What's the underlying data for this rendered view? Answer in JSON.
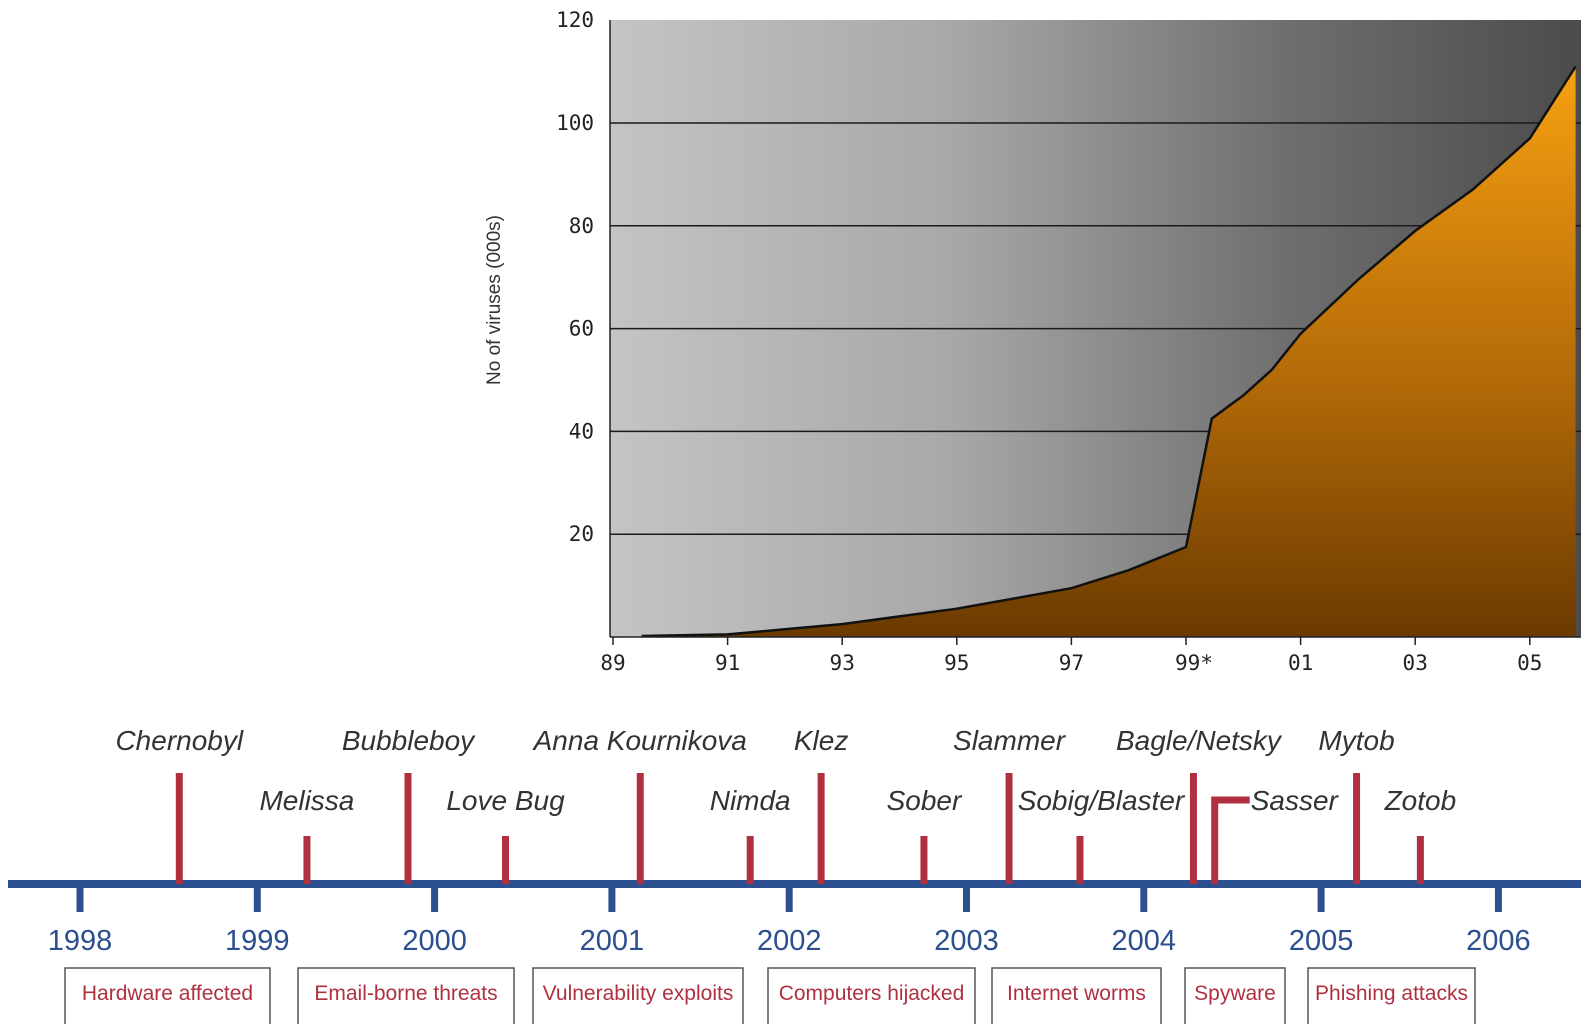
{
  "chart_data": {
    "type": "area",
    "title": "",
    "xlabel": "",
    "ylabel": "No of viruses (000s)",
    "y_ticks": [
      20,
      40,
      60,
      80,
      100,
      120
    ],
    "ylim": [
      0,
      120
    ],
    "x_ticks": [
      "89",
      "91",
      "93",
      "95",
      "97",
      "99*",
      "01",
      "03",
      "05"
    ],
    "grid": true,
    "series": [
      {
        "x": [
          1989.5,
          1991,
          1992,
          1993,
          1994,
          1995,
          1996,
          1997,
          1998,
          1999,
          1999.45,
          2000,
          2000.5,
          2001,
          2002,
          2003,
          2004,
          2005,
          2005.8
        ],
        "values": [
          0.2,
          0.5,
          1.5,
          2.5,
          4,
          5.5,
          7.5,
          9.5,
          13,
          17.5,
          42.5,
          47,
          52,
          59,
          69.5,
          79,
          87,
          97,
          111
        ]
      }
    ],
    "colors": {
      "fill_top": "#f39a10",
      "fill_bottom": "#6b3a00",
      "bg_light": "#c3c3c3",
      "bg_dark": "#4e4e4e"
    }
  },
  "timeline": {
    "years": [
      "1998",
      "1999",
      "2000",
      "2001",
      "2002",
      "2003",
      "2004",
      "2005",
      "2006"
    ],
    "events": [
      {
        "name": "Chernobyl",
        "date": 1998.56,
        "row": "top"
      },
      {
        "name": "Melissa",
        "date": 1999.28,
        "row": "bottom"
      },
      {
        "name": "Bubbleboy",
        "date": 1999.85,
        "row": "top"
      },
      {
        "name": "Love Bug",
        "date": 2000.4,
        "row": "bottom"
      },
      {
        "name": "Anna Kournikova",
        "date": 2001.16,
        "row": "top"
      },
      {
        "name": "Nimda",
        "date": 2001.78,
        "row": "bottom"
      },
      {
        "name": "Klez",
        "date": 2002.18,
        "row": "top"
      },
      {
        "name": "Sober",
        "date": 2002.76,
        "row": "bottom"
      },
      {
        "name": "Slammer",
        "date": 2003.24,
        "row": "top"
      },
      {
        "name": "Sobig/Blaster",
        "date": 2003.64,
        "row": "bottom"
      },
      {
        "name": "Bagle/Netsky",
        "date": 2004.28,
        "row": "top"
      },
      {
        "name": "Sasser",
        "date": 2004.4,
        "row": "bottom"
      },
      {
        "name": "Mytob",
        "date": 2005.2,
        "row": "top"
      },
      {
        "name": "Zotob",
        "date": 2005.56,
        "row": "bottom"
      }
    ],
    "eras": [
      "Hardware affected",
      "Email-borne threats",
      "Vulnerability exploits",
      "Computers hijacked",
      "Internet worms",
      "Spyware",
      "Phishing attacks"
    ],
    "colors": {
      "axis": "#2c4f8f",
      "marker": "#b03040",
      "era_text": "#b03040",
      "box_border": "#555555"
    }
  }
}
